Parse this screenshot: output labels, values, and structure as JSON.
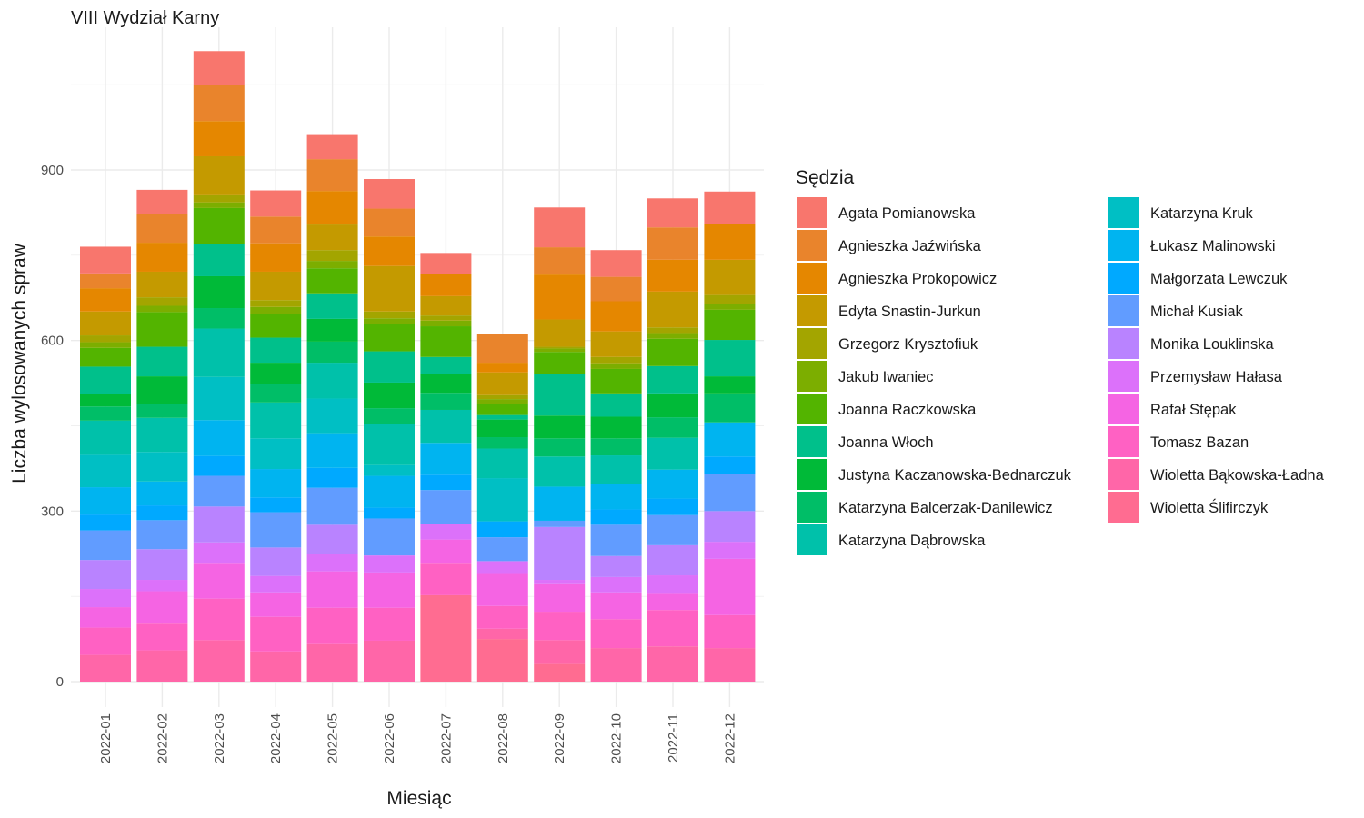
{
  "chart_data": {
    "type": "bar",
    "stacked": true,
    "title": "VIII Wydział Karny",
    "xlabel": "Miesiąc",
    "ylabel": "Liczba wylosowanych spraw",
    "ylim": [
      0,
      1130
    ],
    "yticks": [
      0,
      300,
      600,
      900
    ],
    "grid": true,
    "legend_title": "Sędzia",
    "legend_position": "right",
    "categories": [
      "2022-01",
      "2022-02",
      "2022-03",
      "2022-04",
      "2022-05",
      "2022-06",
      "2022-07",
      "2022-08",
      "2022-09",
      "2022-10",
      "2022-11",
      "2022-12"
    ],
    "series": [
      {
        "name": "Wioletta Ślifirczyk",
        "color": "#FF6C91",
        "values": [
          0,
          0,
          0,
          0,
          0,
          0,
          152,
          75,
          31,
          0,
          0,
          0
        ]
      },
      {
        "name": "Wioletta Bąkowska-Ładna",
        "color": "#FF66A8",
        "values": [
          47,
          55,
          73,
          53,
          66,
          72,
          0,
          18,
          42,
          59,
          62,
          59
        ]
      },
      {
        "name": "Tomasz Bazan",
        "color": "#FF61C3",
        "values": [
          48,
          47,
          73,
          61,
          64,
          58,
          57,
          40,
          50,
          51,
          64,
          58
        ]
      },
      {
        "name": "Rafał Stępak",
        "color": "#F564E3",
        "values": [
          36,
          57,
          63,
          43,
          64,
          62,
          41,
          58,
          50,
          47,
          30,
          99
        ]
      },
      {
        "name": "Przemysław Hałasa",
        "color": "#DC71FA",
        "values": [
          32,
          20,
          36,
          29,
          30,
          30,
          27,
          21,
          6,
          27,
          31,
          30
        ]
      },
      {
        "name": "Monika Louklinska",
        "color": "#B983FF",
        "values": [
          51,
          54,
          63,
          50,
          52,
          0,
          0,
          0,
          93,
          37,
          53,
          54
        ]
      },
      {
        "name": "Michał Kusiak",
        "color": "#619CFF",
        "values": [
          52,
          51,
          54,
          62,
          65,
          65,
          60,
          42,
          11,
          55,
          53,
          66
        ]
      },
      {
        "name": "Małgorzata Lewczuk",
        "color": "#00A9FF",
        "values": [
          28,
          26,
          35,
          26,
          35,
          19,
          27,
          28,
          0,
          27,
          29,
          30
        ]
      },
      {
        "name": "Łukasz Malinowski",
        "color": "#00B4F0",
        "values": [
          48,
          42,
          63,
          50,
          61,
          56,
          56,
          0,
          60,
          45,
          51,
          60
        ]
      },
      {
        "name": "Katarzyna Kruk",
        "color": "#00BFC4",
        "values": [
          57,
          52,
          76,
          54,
          61,
          19,
          0,
          76,
          0,
          0,
          0,
          0
        ]
      },
      {
        "name": "Katarzyna Dąbrowska",
        "color": "#00C1AA",
        "values": [
          60,
          60,
          85,
          63,
          63,
          73,
          58,
          52,
          53,
          50,
          56,
          0
        ]
      },
      {
        "name": "Katarzyna Balcerzak-Danilewicz",
        "color": "#00BE67",
        "values": [
          25,
          25,
          36,
          32,
          37,
          27,
          30,
          20,
          32,
          30,
          36,
          51
        ]
      },
      {
        "name": "Justyna Kaczanowska-Bednarczuk",
        "color": "#00BA38",
        "values": [
          22,
          48,
          56,
          38,
          40,
          45,
          33,
          31,
          40,
          38,
          42,
          30
        ]
      },
      {
        "name": "Joanna Włoch",
        "color": "#00C08B",
        "values": [
          48,
          52,
          57,
          44,
          45,
          55,
          30,
          8,
          73,
          41,
          48,
          64
        ]
      },
      {
        "name": "Joanna Raczkowska",
        "color": "#53B400",
        "values": [
          33,
          61,
          63,
          42,
          44,
          48,
          54,
          20,
          39,
          43,
          48,
          53
        ]
      },
      {
        "name": "Jakub Iwaniec",
        "color": "#7CAE00",
        "values": [
          10,
          11,
          10,
          12,
          13,
          10,
          10,
          8,
          6,
          10,
          10,
          10
        ]
      },
      {
        "name": "Grzegorz Krysztofiuk",
        "color": "#A3A500",
        "values": [
          12,
          15,
          14,
          12,
          19,
          12,
          9,
          7,
          3,
          11,
          10,
          16
        ]
      },
      {
        "name": "Edyta Snastin-Jurkun",
        "color": "#C49A00",
        "values": [
          42,
          45,
          67,
          50,
          45,
          80,
          34,
          40,
          48,
          45,
          63,
          62
        ]
      },
      {
        "name": "Agnieszka Prokopowicz",
        "color": "#E58700",
        "values": [
          41,
          51,
          62,
          50,
          59,
          52,
          39,
          17,
          79,
          53,
          56,
          63
        ]
      },
      {
        "name": "Agnieszka Jaźwińska",
        "color": "#E9842C",
        "values": [
          26,
          50,
          63,
          47,
          56,
          49,
          0,
          50,
          48,
          43,
          57,
          0
        ]
      },
      {
        "name": "Agata Pomianowska",
        "color": "#F8766D",
        "values": [
          47,
          43,
          60,
          46,
          44,
          52,
          37,
          0,
          70,
          47,
          51,
          57
        ]
      }
    ]
  }
}
